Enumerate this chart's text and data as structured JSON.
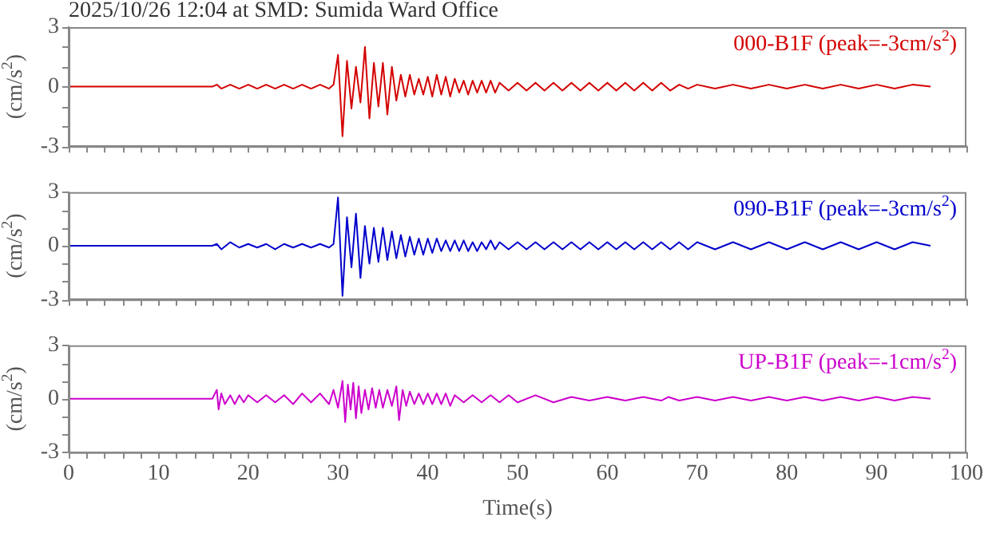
{
  "chart_data": [
    {
      "type": "line",
      "title": "2025/10/26 12:04 at SMD: Sumida Ward Office",
      "ylabel": "(cm/s$^{2}$)",
      "legend": "top right",
      "tick_labels": "y",
      "marker": "none",
      "grid": false,
      "xlim": [
        0,
        100
      ],
      "xticks": [
        0,
        {
          "value": 2,
          "label": null
        },
        {
          "value": 4,
          "label": null
        },
        {
          "value": 6,
          "label": null
        },
        {
          "value": 8,
          "label": null
        },
        10,
        {
          "value": 12,
          "label": null
        },
        {
          "value": 14,
          "label": null
        },
        {
          "value": 16,
          "label": null
        },
        {
          "value": 18,
          "label": null
        },
        20,
        {
          "value": 22,
          "label": null
        },
        {
          "value": 24,
          "label": null
        },
        {
          "value": 26,
          "label": null
        },
        {
          "value": 28,
          "label": null
        },
        30,
        {
          "value": 32,
          "label": null
        },
        {
          "value": 34,
          "label": null
        },
        {
          "value": 36,
          "label": null
        },
        {
          "value": 38,
          "label": null
        },
        40,
        {
          "value": 42,
          "label": null
        },
        {
          "value": 44,
          "label": null
        },
        {
          "value": 46,
          "label": null
        },
        {
          "value": 48,
          "label": null
        },
        50,
        {
          "value": 52,
          "label": null
        },
        {
          "value": 54,
          "label": null
        },
        {
          "value": 56,
          "label": null
        },
        {
          "value": 58,
          "label": null
        },
        60,
        {
          "value": 62,
          "label": null
        },
        {
          "value": 64,
          "label": null
        },
        {
          "value": 66,
          "label": null
        },
        {
          "value": 68,
          "label": null
        },
        70,
        {
          "value": 72,
          "label": null
        },
        {
          "value": 74,
          "label": null
        },
        {
          "value": 76,
          "label": null
        },
        {
          "value": 78,
          "label": null
        },
        80,
        {
          "value": 82,
          "label": null
        },
        {
          "value": 84,
          "label": null
        },
        {
          "value": 86,
          "label": null
        },
        {
          "value": 88,
          "label": null
        },
        90,
        {
          "value": 92,
          "label": null
        },
        {
          "value": 94,
          "label": null
        },
        {
          "value": 96,
          "label": null
        },
        {
          "value": 98,
          "label": null
        },
        100
      ],
      "ylim": [
        -3,
        3
      ],
      "yticks": [
        -3,
        {
          "value": -2,
          "label": null
        },
        {
          "value": -1,
          "label": null
        },
        0,
        {
          "value": 1,
          "label": null
        },
        {
          "value": 2,
          "label": null
        },
        3
      ],
      "series": [
        {
          "name": "000-B1F (peak=-3cm/s$^{2}$)",
          "color": "#d40000",
          "x": [
            0,
            16,
            16.5,
            17,
            18,
            19,
            20,
            21,
            22,
            23,
            24,
            25,
            26,
            27,
            28,
            29,
            29.5,
            30,
            30.5,
            31,
            31.5,
            32,
            32.5,
            33,
            33.5,
            34,
            34.5,
            35,
            35.5,
            36,
            36.5,
            37,
            37.5,
            38,
            38.5,
            39,
            39.5,
            40,
            40.5,
            41,
            41.5,
            42,
            42.5,
            43,
            43.5,
            44,
            44.5,
            45,
            45.5,
            46,
            46.5,
            47,
            47.5,
            48,
            49,
            50,
            51,
            52,
            53,
            54,
            55,
            56,
            57,
            58,
            59,
            60,
            61,
            62,
            63,
            64,
            65,
            66,
            67,
            68,
            69,
            70,
            72,
            74,
            76,
            78,
            80,
            82,
            84,
            86,
            88,
            90,
            92,
            94,
            96
          ],
          "values": [
            0,
            0,
            0.1,
            -0.1,
            0.1,
            -0.1,
            0.1,
            -0.1,
            0.1,
            -0.1,
            0.1,
            -0.1,
            0.1,
            -0.1,
            0.1,
            -0.1,
            0.1,
            1.6,
            -2.5,
            1.3,
            -1.1,
            1.0,
            -0.8,
            2.0,
            -1.6,
            1.2,
            -1.0,
            1.2,
            -1.4,
            1.0,
            -0.7,
            0.6,
            -0.5,
            0.6,
            -0.4,
            0.4,
            -0.4,
            0.5,
            -0.5,
            0.6,
            -0.4,
            0.5,
            -0.5,
            0.4,
            -0.3,
            0.3,
            -0.4,
            0.3,
            -0.3,
            0.3,
            -0.3,
            0.3,
            -0.3,
            0.2,
            -0.2,
            0.2,
            -0.2,
            0.2,
            -0.2,
            0.2,
            -0.2,
            0.2,
            -0.2,
            0.2,
            -0.2,
            0.2,
            -0.2,
            0.2,
            -0.2,
            0.2,
            -0.2,
            0.2,
            -0.2,
            0.1,
            -0.1,
            0.1,
            -0.1,
            0.1,
            -0.1,
            0.1,
            -0.1,
            0.1,
            -0.1,
            0.1,
            -0.1,
            0.1,
            -0.1,
            0.1,
            0
          ]
        }
      ]
    },
    {
      "type": "line",
      "ylabel": "(cm/s$^{2}$)",
      "legend": "top right",
      "tick_labels": "y",
      "marker": "none",
      "grid": false,
      "xlim": [
        0,
        100
      ],
      "xticks": [
        0,
        {
          "value": 2,
          "label": null
        },
        {
          "value": 4,
          "label": null
        },
        {
          "value": 6,
          "label": null
        },
        {
          "value": 8,
          "label": null
        },
        10,
        {
          "value": 12,
          "label": null
        },
        {
          "value": 14,
          "label": null
        },
        {
          "value": 16,
          "label": null
        },
        {
          "value": 18,
          "label": null
        },
        20,
        {
          "value": 22,
          "label": null
        },
        {
          "value": 24,
          "label": null
        },
        {
          "value": 26,
          "label": null
        },
        {
          "value": 28,
          "label": null
        },
        30,
        {
          "value": 32,
          "label": null
        },
        {
          "value": 34,
          "label": null
        },
        {
          "value": 36,
          "label": null
        },
        {
          "value": 38,
          "label": null
        },
        40,
        {
          "value": 42,
          "label": null
        },
        {
          "value": 44,
          "label": null
        },
        {
          "value": 46,
          "label": null
        },
        {
          "value": 48,
          "label": null
        },
        50,
        {
          "value": 52,
          "label": null
        },
        {
          "value": 54,
          "label": null
        },
        {
          "value": 56,
          "label": null
        },
        {
          "value": 58,
          "label": null
        },
        60,
        {
          "value": 62,
          "label": null
        },
        {
          "value": 64,
          "label": null
        },
        {
          "value": 66,
          "label": null
        },
        {
          "value": 68,
          "label": null
        },
        70,
        {
          "value": 72,
          "label": null
        },
        {
          "value": 74,
          "label": null
        },
        {
          "value": 76,
          "label": null
        },
        {
          "value": 78,
          "label": null
        },
        80,
        {
          "value": 82,
          "label": null
        },
        {
          "value": 84,
          "label": null
        },
        {
          "value": 86,
          "label": null
        },
        {
          "value": 88,
          "label": null
        },
        90,
        {
          "value": 92,
          "label": null
        },
        {
          "value": 94,
          "label": null
        },
        {
          "value": 96,
          "label": null
        },
        {
          "value": 98,
          "label": null
        },
        100
      ],
      "ylim": [
        -3,
        3
      ],
      "yticks": [
        -3,
        {
          "value": -2,
          "label": null
        },
        {
          "value": -1,
          "label": null
        },
        0,
        {
          "value": 1,
          "label": null
        },
        {
          "value": 2,
          "label": null
        },
        3
      ],
      "series": [
        {
          "name": "090-B1F (peak=-3cm/s$^{2}$)",
          "color": "#0000cc",
          "x": [
            0,
            16,
            16.5,
            17,
            18,
            19,
            20,
            21,
            22,
            23,
            24,
            25,
            26,
            27,
            28,
            29,
            29.5,
            30,
            30.5,
            31,
            31.5,
            32,
            32.5,
            33,
            33.5,
            34,
            34.5,
            35,
            35.5,
            36,
            36.5,
            37,
            37.5,
            38,
            38.5,
            39,
            39.5,
            40,
            40.5,
            41,
            41.5,
            42,
            42.5,
            43,
            43.5,
            44,
            44.5,
            45,
            45.5,
            46,
            46.5,
            47,
            47.5,
            48,
            49,
            50,
            51,
            52,
            53,
            54,
            55,
            56,
            57,
            58,
            59,
            60,
            61,
            62,
            63,
            64,
            65,
            66,
            67,
            68,
            69,
            70,
            72,
            74,
            76,
            78,
            80,
            82,
            84,
            86,
            88,
            90,
            92,
            94,
            96
          ],
          "values": [
            0,
            0,
            0.1,
            -0.2,
            0.2,
            -0.1,
            0.1,
            -0.1,
            0.1,
            -0.2,
            0.1,
            -0.1,
            0.1,
            -0.1,
            0.1,
            -0.1,
            0.1,
            2.7,
            -2.8,
            1.6,
            -1.2,
            1.8,
            -1.8,
            1.1,
            -1.0,
            1.0,
            -0.9,
            1.0,
            -0.8,
            0.8,
            -0.7,
            0.6,
            -0.6,
            0.5,
            -0.5,
            0.4,
            -0.5,
            0.4,
            -0.4,
            0.4,
            -0.3,
            0.3,
            -0.3,
            0.3,
            -0.3,
            0.3,
            -0.3,
            0.2,
            -0.3,
            0.2,
            -0.2,
            0.3,
            -0.2,
            0.2,
            -0.2,
            0.2,
            -0.2,
            0.2,
            -0.2,
            0.2,
            -0.2,
            0.2,
            -0.2,
            0.2,
            -0.2,
            0.2,
            -0.2,
            0.2,
            -0.2,
            0.2,
            -0.2,
            0.2,
            -0.2,
            0.2,
            -0.2,
            0.2,
            -0.2,
            0.2,
            -0.2,
            0.2,
            -0.2,
            0.2,
            -0.2,
            0.2,
            -0.2,
            0.2,
            -0.2,
            0.2,
            0
          ]
        }
      ]
    },
    {
      "type": "line",
      "ylabel": "(cm/s$^{2}$)",
      "xlabel": "Time(s)",
      "legend": "top right",
      "marker": "none",
      "grid": false,
      "xlim": [
        0,
        100
      ],
      "xticks": [
        0,
        {
          "value": 2,
          "label": null
        },
        {
          "value": 4,
          "label": null
        },
        {
          "value": 6,
          "label": null
        },
        {
          "value": 8,
          "label": null
        },
        10,
        {
          "value": 12,
          "label": null
        },
        {
          "value": 14,
          "label": null
        },
        {
          "value": 16,
          "label": null
        },
        {
          "value": 18,
          "label": null
        },
        20,
        {
          "value": 22,
          "label": null
        },
        {
          "value": 24,
          "label": null
        },
        {
          "value": 26,
          "label": null
        },
        {
          "value": 28,
          "label": null
        },
        30,
        {
          "value": 32,
          "label": null
        },
        {
          "value": 34,
          "label": null
        },
        {
          "value": 36,
          "label": null
        },
        {
          "value": 38,
          "label": null
        },
        40,
        {
          "value": 42,
          "label": null
        },
        {
          "value": 44,
          "label": null
        },
        {
          "value": 46,
          "label": null
        },
        {
          "value": 48,
          "label": null
        },
        50,
        {
          "value": 52,
          "label": null
        },
        {
          "value": 54,
          "label": null
        },
        {
          "value": 56,
          "label": null
        },
        {
          "value": 58,
          "label": null
        },
        60,
        {
          "value": 62,
          "label": null
        },
        {
          "value": 64,
          "label": null
        },
        {
          "value": 66,
          "label": null
        },
        {
          "value": 68,
          "label": null
        },
        70,
        {
          "value": 72,
          "label": null
        },
        {
          "value": 74,
          "label": null
        },
        {
          "value": 76,
          "label": null
        },
        {
          "value": 78,
          "label": null
        },
        80,
        {
          "value": 82,
          "label": null
        },
        {
          "value": 84,
          "label": null
        },
        {
          "value": 86,
          "label": null
        },
        {
          "value": 88,
          "label": null
        },
        90,
        {
          "value": 92,
          "label": null
        },
        {
          "value": 94,
          "label": null
        },
        {
          "value": 96,
          "label": null
        },
        {
          "value": 98,
          "label": null
        },
        100
      ],
      "ylim": [
        -3,
        3
      ],
      "yticks": [
        -3,
        {
          "value": -2,
          "label": null
        },
        {
          "value": -1,
          "label": null
        },
        0,
        {
          "value": 1,
          "label": null
        },
        {
          "value": 2,
          "label": null
        },
        3
      ],
      "series": [
        {
          "name": "UP-B1F (peak=-1cm/s$^{2}$)",
          "color": "#cc00cc",
          "x": [
            0,
            16,
            16.5,
            16.7,
            17,
            17.4,
            18,
            18.5,
            19,
            19.5,
            20,
            21,
            22,
            23,
            24,
            25,
            26,
            27,
            28,
            29,
            29.5,
            30,
            30.5,
            30.8,
            31.1,
            31.4,
            31.7,
            32,
            32.3,
            32.6,
            33,
            33.4,
            33.8,
            34.2,
            34.6,
            35,
            35.5,
            36,
            36.5,
            36.8,
            37.2,
            37.6,
            38,
            38.5,
            39,
            39.5,
            40,
            40.5,
            41,
            41.5,
            42,
            42.5,
            43,
            44,
            45,
            46,
            47,
            48,
            49,
            50,
            52,
            54,
            56,
            58,
            60,
            62,
            64,
            66,
            66.8,
            68,
            70,
            72,
            74,
            76,
            78,
            80,
            82,
            84,
            86,
            88,
            90,
            92,
            94,
            96
          ],
          "values": [
            0,
            0,
            0.5,
            -0.6,
            0.3,
            -0.3,
            0.2,
            -0.3,
            0.2,
            -0.2,
            0.2,
            -0.2,
            0.2,
            -0.2,
            0.2,
            -0.3,
            0.3,
            -0.2,
            0.3,
            -0.3,
            0.5,
            -0.5,
            1.0,
            -1.3,
            0.8,
            -0.6,
            0.9,
            -1.1,
            0.7,
            -0.8,
            0.5,
            -0.6,
            0.6,
            -0.5,
            0.5,
            -0.5,
            0.5,
            -0.4,
            0.7,
            -1.2,
            0.5,
            -0.4,
            0.4,
            -0.3,
            0.3,
            -0.3,
            0.3,
            -0.3,
            0.3,
            -0.3,
            0.3,
            -0.4,
            0.2,
            -0.2,
            0.2,
            -0.2,
            0.2,
            -0.2,
            0.2,
            -0.2,
            0.2,
            -0.2,
            0.1,
            -0.1,
            0.1,
            -0.1,
            0.1,
            -0.1,
            0.1,
            -0.1,
            0.1,
            -0.1,
            0.1,
            -0.1,
            0.1,
            -0.1,
            0.1,
            -0.1,
            0.1,
            -0.1,
            0.1,
            -0.1,
            0.1,
            0
          ]
        }
      ]
    }
  ]
}
